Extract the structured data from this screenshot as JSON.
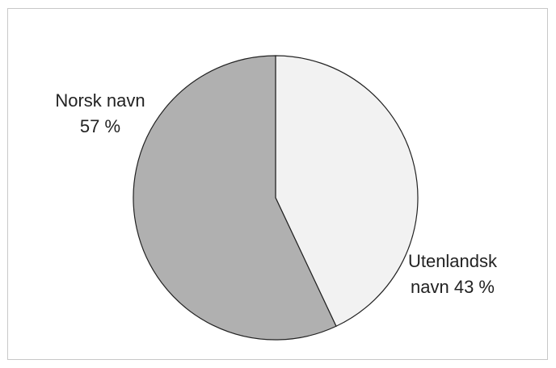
{
  "chart_data": {
    "type": "pie",
    "title": "",
    "slices": [
      {
        "label": "Utenlandsk navn",
        "value": 43,
        "label_lines": [
          "Utenlandsk",
          "navn 43 %"
        ],
        "color": "#f2f2f2"
      },
      {
        "label": "Norsk navn",
        "value": 57,
        "label_lines": [
          "Norsk navn",
          "57 %"
        ],
        "color": "#b0b0b0"
      }
    ],
    "start_angle": "12 o'clock",
    "direction": "clockwise",
    "legend": "none",
    "label_placement": "outside-end",
    "stroke_color": "#222222"
  }
}
